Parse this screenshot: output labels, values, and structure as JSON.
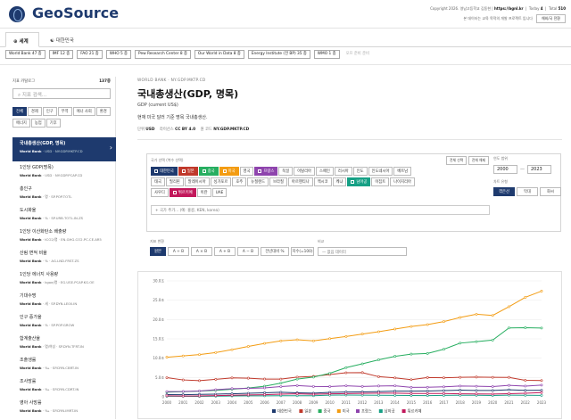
{
  "header": {
    "brand": "GeoSource",
    "copyright": "Copyright 2026. 영남고등학교 김동현 |",
    "link": "https://bgnl.kr",
    "today_label": "Today",
    "today_value": "4",
    "total_label": "Total",
    "total_value": "510",
    "note": "본 데이터는 교육 목적의 개발 프로젝트 입니다",
    "lang": "해외/국 전환"
  },
  "tabs": [
    {
      "label": "세계",
      "icon": "globe-icon"
    },
    {
      "label": "대한민국",
      "icon": "korea-flag-icon"
    }
  ],
  "sources": [
    "World Bank 47 종",
    "IMF 12 종",
    "FAO 21 종",
    "WHO 5 종",
    "Pew Research Center 8 종",
    "Our World in Data 8 종",
    "Energy Institute (전 BP) 35 종",
    "WMO 1 종",
    "오프 준비 준비"
  ],
  "sidebar": {
    "label": "지표 카탈로그",
    "count": "137종",
    "search_placeholder": "지표 검색...",
    "filters": [
      "전체",
      "경제",
      "인구",
      "무역",
      "에너 사회",
      "환경",
      "에너지",
      "농업",
      "기후"
    ],
    "items": [
      {
        "title": "국내총생산(GDP, 명목)",
        "src": "World Bank",
        "code": "· USD · NY.GDP.MKTP.CD"
      },
      {
        "title": "1인당 GDP(명목)",
        "src": "World Bank",
        "code": "· USD · NY.GDP.PCAP.CD"
      },
      {
        "title": "총인구",
        "src": "World Bank",
        "code": "· 명 · SP.POP.TOTL"
      },
      {
        "title": "도시화율",
        "src": "World Bank",
        "code": "· % · SP.URB.TOTL.IN.ZS"
      },
      {
        "title": "1인당 이산화탄소 배출량",
        "src": "World Bank",
        "code": "· tCO2/명 · EN.GHG.CO2.PC.CE.AR5"
      },
      {
        "title": "산림 면적 비율",
        "src": "World Bank",
        "code": "· % · AG.LND.FRST.ZS"
      },
      {
        "title": "1인당 에너지 사용량",
        "src": "World Bank",
        "code": "· kgoe/명 · EG.USE.PCAP.KG.OE"
      },
      {
        "title": "기대수명",
        "src": "World Bank",
        "code": "· 세 · SP.DYN.LE00.IN"
      },
      {
        "title": "인구 증가율",
        "src": "World Bank",
        "code": "· % · SP.POP.GROW"
      },
      {
        "title": "합계출산율",
        "src": "World Bank",
        "code": "· 명/여성 · SP.DYN.TFRT.IN"
      },
      {
        "title": "조출생률",
        "src": "World Bank",
        "code": "· ‰ · SP.DYN.CBRT.IN"
      },
      {
        "title": "조사망률",
        "src": "World Bank",
        "code": "· ‰ · SP.DYN.CDRT.IN"
      },
      {
        "title": "영아 사망률",
        "src": "World Bank",
        "code": "· ‰ · SP.DYN.IMRT.IN"
      }
    ]
  },
  "main": {
    "breadcrumb": "WORLD BANK · NY.GDP.MKTP.CD",
    "title": "국내총생산(GDP, 명목)",
    "subtitle": "GDP (current US$)",
    "desc": "현재 미국 달러 기준 명목 국내총생산.",
    "unit_label": "단위",
    "unit": "USD",
    "license_label": "라이선스",
    "license": "CC BY 4.0",
    "code_label": "원 코드",
    "code": "NY.GDP.MKTP.CD"
  },
  "countries": {
    "label": "국가 선택 (복수 선택)",
    "select_all": "전체 선택",
    "deselect_all": "전체 해제",
    "list": [
      {
        "name": "대한민국",
        "sel": true,
        "color": "#1e3a6e"
      },
      {
        "name": "일본",
        "sel": true,
        "color": "#c0392b"
      },
      {
        "name": "중국",
        "sel": true,
        "color": "#27ae60"
      },
      {
        "name": "미국",
        "sel": true,
        "color": "#f39c12"
      },
      {
        "name": "영국",
        "sel": false,
        "color": ""
      },
      {
        "name": "프랑스",
        "sel": true,
        "color": "#8e44ad"
      },
      {
        "name": "독일",
        "sel": false,
        "color": ""
      },
      {
        "name": "이탈리아",
        "sel": false,
        "color": ""
      },
      {
        "name": "스페인",
        "sel": false,
        "color": ""
      },
      {
        "name": "러시아",
        "sel": false,
        "color": ""
      },
      {
        "name": "인도",
        "sel": false,
        "color": ""
      },
      {
        "name": "인도네시아",
        "sel": false,
        "color": ""
      },
      {
        "name": "베트남",
        "sel": false,
        "color": ""
      },
      {
        "name": "태국",
        "sel": false,
        "color": ""
      },
      {
        "name": "필리핀",
        "sel": false,
        "color": ""
      },
      {
        "name": "말레이시아",
        "sel": false,
        "color": ""
      },
      {
        "name": "싱가포르",
        "sel": false,
        "color": ""
      },
      {
        "name": "호주",
        "sel": false,
        "color": ""
      },
      {
        "name": "뉴질랜드",
        "sel": false,
        "color": ""
      },
      {
        "name": "브라질",
        "sel": false,
        "color": ""
      },
      {
        "name": "아르헨티나",
        "sel": false,
        "color": ""
      },
      {
        "name": "멕시코",
        "sel": false,
        "color": ""
      },
      {
        "name": "케냐",
        "sel": false,
        "color": ""
      },
      {
        "name": "남아공",
        "sel": true,
        "color": "#16a085"
      },
      {
        "name": "이집트",
        "sel": false,
        "color": ""
      },
      {
        "name": "나이지리아",
        "sel": false,
        "color": ""
      },
      {
        "name": "사우디",
        "sel": false,
        "color": ""
      },
      {
        "name": "튀르키예",
        "sel": true,
        "color": "#c2185b"
      },
      {
        "name": "이란",
        "sel": false,
        "color": ""
      },
      {
        "name": "UAE",
        "sel": false,
        "color": ""
      }
    ],
    "search_placeholder": "국가 추가... (예: 홍콩, KEN, korea)"
  },
  "range": {
    "label": "연도 범위",
    "from": "2000",
    "to": "2023",
    "chart_label": "차트 유형",
    "types": [
      "꺾은선",
      "막대",
      "화씨"
    ]
  },
  "options": {
    "scale_label": "지표 변환",
    "buttons": [
      "원본",
      "A ÷ B",
      "A × B",
      "A + B",
      "A − B",
      "전년대비 %",
      "지수(=100)"
    ],
    "compare_label": "비교",
    "compare_placeholder": "— 없음 데이터"
  },
  "chart_data": {
    "type": "line",
    "x": [
      2000,
      2001,
      2002,
      2003,
      2004,
      2005,
      2006,
      2007,
      2008,
      2009,
      2010,
      2011,
      2012,
      2013,
      2014,
      2015,
      2016,
      2017,
      2018,
      2019,
      2020,
      2021,
      2022,
      2023
    ],
    "ylim": [
      0,
      30
    ],
    "yticks": [
      "0",
      "5.0조",
      "10.0조",
      "15.0조",
      "20.0조",
      "25.0조",
      "30.0조"
    ],
    "series": [
      {
        "name": "대한민국",
        "color": "#1e3a6e",
        "values": [
          0.58,
          0.55,
          0.63,
          0.7,
          0.79,
          0.93,
          1.05,
          1.17,
          1.05,
          0.94,
          1.14,
          1.25,
          1.28,
          1.37,
          1.48,
          1.47,
          1.5,
          1.62,
          1.72,
          1.65,
          1.64,
          1.82,
          1.67,
          1.71
        ]
      },
      {
        "name": "일본",
        "color": "#c0392b",
        "values": [
          4.97,
          4.37,
          4.18,
          4.52,
          4.89,
          4.83,
          4.6,
          4.58,
          5.11,
          5.29,
          5.76,
          6.23,
          6.27,
          5.21,
          4.9,
          4.44,
          5.0,
          4.93,
          5.04,
          5.12,
          5.04,
          5.03,
          4.26,
          4.21
        ]
      },
      {
        "name": "중국",
        "color": "#27ae60",
        "values": [
          1.21,
          1.34,
          1.47,
          1.66,
          1.96,
          2.29,
          2.75,
          3.55,
          4.59,
          5.1,
          6.09,
          7.55,
          8.53,
          9.57,
          10.48,
          11.06,
          11.23,
          12.31,
          13.89,
          14.28,
          14.69,
          17.82,
          17.88,
          17.79
        ]
      },
      {
        "name": "미국",
        "color": "#f39c12",
        "values": [
          10.25,
          10.58,
          10.94,
          11.46,
          12.21,
          13.04,
          13.82,
          14.47,
          14.77,
          14.48,
          15.05,
          15.6,
          16.25,
          16.84,
          17.55,
          18.21,
          18.7,
          19.48,
          20.53,
          21.38,
          21.06,
          23.32,
          25.74,
          27.36
        ]
      },
      {
        "name": "프랑스",
        "color": "#8e44ad",
        "values": [
          1.36,
          1.38,
          1.5,
          1.84,
          2.12,
          2.2,
          2.32,
          2.66,
          2.92,
          2.69,
          2.64,
          2.86,
          2.68,
          2.81,
          2.86,
          2.44,
          2.47,
          2.59,
          2.79,
          2.73,
          2.64,
          2.96,
          2.78,
          3.03
        ]
      },
      {
        "name": "남아공",
        "color": "#16a085",
        "values": [
          0.15,
          0.14,
          0.12,
          0.18,
          0.23,
          0.26,
          0.27,
          0.3,
          0.29,
          0.3,
          0.42,
          0.46,
          0.43,
          0.4,
          0.38,
          0.35,
          0.32,
          0.38,
          0.4,
          0.39,
          0.34,
          0.42,
          0.41,
          0.38
        ]
      },
      {
        "name": "튀르키예",
        "color": "#c2185b",
        "values": [
          0.27,
          0.2,
          0.24,
          0.31,
          0.4,
          0.5,
          0.55,
          0.68,
          0.77,
          0.65,
          0.78,
          0.84,
          0.88,
          0.96,
          0.94,
          0.87,
          0.87,
          0.86,
          0.78,
          0.76,
          0.72,
          0.82,
          0.91,
          1.11
        ]
      }
    ]
  }
}
